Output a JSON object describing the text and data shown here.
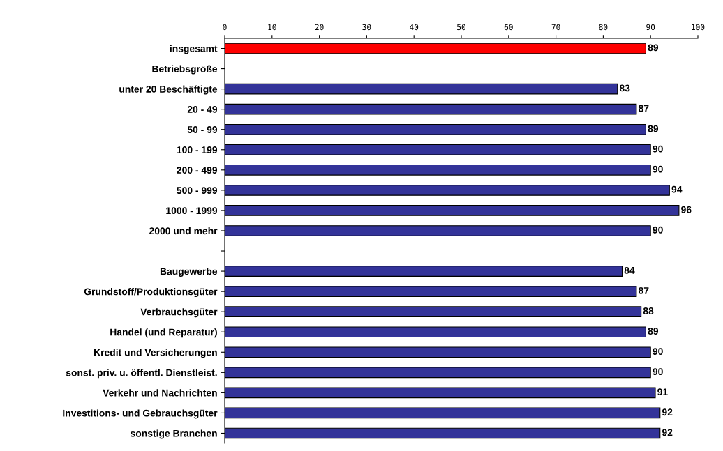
{
  "chart_data": {
    "type": "bar",
    "orientation": "horizontal",
    "categories": [
      "insgesamt",
      "Betriebsgröße",
      "unter 20 Beschäftigte",
      "20 - 49",
      "50 - 99",
      "100 - 199",
      "200 - 499",
      "500 - 999",
      "1000 - 1999",
      "2000 und mehr",
      null,
      "Baugewerbe",
      "Grundstoff/Produktionsgüter",
      "Verbrauchsgüter",
      "Handel (und Reparatur)",
      "Kredit und Versicherungen",
      "sonst. priv. u. öffentl. Dienstleist.",
      "Verkehr und Nachrichten",
      "Investitions- und Gebrauchsgüter",
      "sonstige Branchen"
    ],
    "values": [
      89,
      null,
      83,
      87,
      89,
      90,
      90,
      94,
      96,
      90,
      null,
      84,
      87,
      88,
      89,
      90,
      90,
      91,
      92,
      92
    ],
    "colors": [
      "#ff0000",
      null,
      "#333399",
      "#333399",
      "#333399",
      "#333399",
      "#333399",
      "#333399",
      "#333399",
      "#333399",
      null,
      "#333399",
      "#333399",
      "#333399",
      "#333399",
      "#333399",
      "#333399",
      "#333399",
      "#333399",
      "#333399"
    ],
    "xlim": [
      0,
      100
    ],
    "xticks": [
      0,
      10,
      20,
      30,
      40,
      50,
      60,
      70,
      80,
      90,
      100
    ],
    "data_labels": true,
    "grid": false,
    "legend": false
  }
}
